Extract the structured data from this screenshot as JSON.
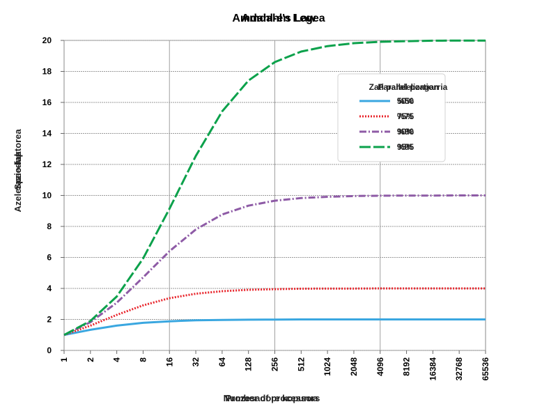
{
  "chart_data": {
    "type": "line",
    "title_lines": [
      "Amdahl's Law",
      "Amdahl-en Legea"
    ],
    "xlabel_lines": [
      "Number of processors",
      "Prozesadore kopurua"
    ],
    "ylabel_lines": [
      "Speedup",
      "Azelerazio-faktorea"
    ],
    "x_scale": "log2",
    "categories": [
      "1",
      "2",
      "4",
      "8",
      "16",
      "32",
      "64",
      "128",
      "256",
      "512",
      "1024",
      "2048",
      "4096",
      "8192",
      "16384",
      "32768",
      "65536"
    ],
    "y_ticks": [
      "0",
      "2",
      "4",
      "6",
      "8",
      "10",
      "12",
      "14",
      "16",
      "18",
      "20"
    ],
    "ylim": [
      0,
      20
    ],
    "grid": true,
    "legend_position": "top-right",
    "legend_title_lines": [
      "Parallel portion",
      "Zati paralelizagarria"
    ],
    "series": [
      {
        "name": "50%",
        "name_alt": "%50",
        "color": "#3aa7e0",
        "dash": "solid",
        "values": [
          1.0,
          1.33,
          1.6,
          1.78,
          1.88,
          1.94,
          1.97,
          1.98,
          1.99,
          2.0,
          2.0,
          2.0,
          2.0,
          2.0,
          2.0,
          2.0,
          2.0
        ]
      },
      {
        "name": "75%",
        "name_alt": "%75",
        "color": "#e8242b",
        "dash": "dotted",
        "values": [
          1.0,
          1.6,
          2.29,
          2.91,
          3.37,
          3.66,
          3.82,
          3.91,
          3.95,
          3.98,
          3.99,
          3.99,
          4.0,
          4.0,
          4.0,
          4.0,
          4.0
        ]
      },
      {
        "name": "90%",
        "name_alt": "%90",
        "color": "#8e5ba6",
        "dash": "dashdot",
        "values": [
          1.0,
          1.82,
          3.08,
          4.71,
          6.4,
          7.8,
          8.77,
          9.34,
          9.66,
          9.83,
          9.91,
          9.96,
          9.98,
          9.99,
          9.99,
          10.0,
          10.0
        ]
      },
      {
        "name": "95%",
        "name_alt": "%95",
        "color": "#0ba14b",
        "dash": "longdash",
        "values": [
          1.0,
          1.9,
          3.48,
          5.93,
          9.14,
          12.55,
          15.42,
          17.41,
          18.6,
          19.28,
          19.63,
          19.82,
          19.91,
          19.95,
          19.98,
          19.99,
          19.99
        ]
      }
    ]
  }
}
